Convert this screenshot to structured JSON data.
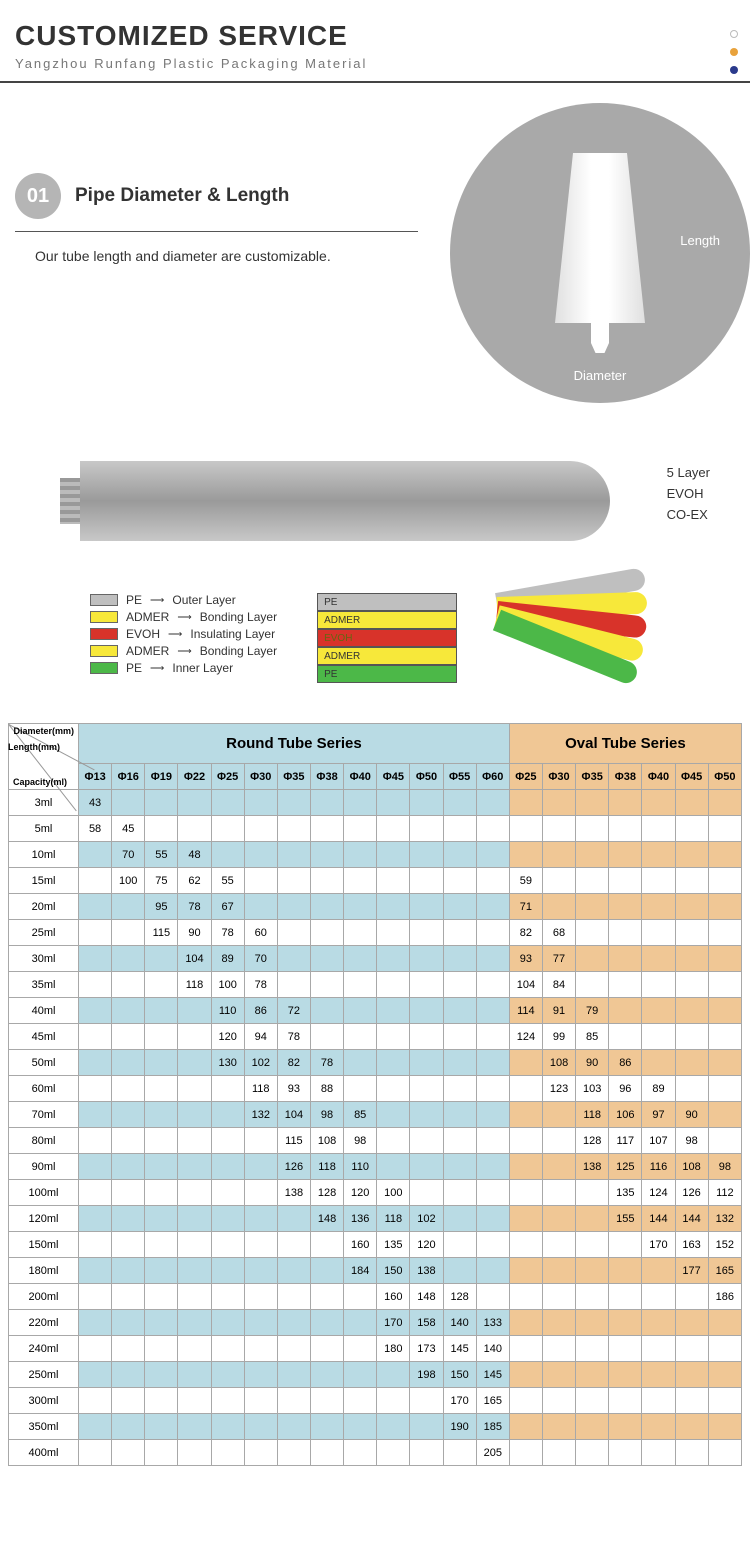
{
  "header": {
    "title": "CUSTOMIZED SERVICE",
    "subtitle": "Yangzhou Runfang Plastic Packaging Material"
  },
  "dots": {
    "colors": [
      "#ffffff",
      "#e8a23c",
      "#2a3a8c"
    ]
  },
  "section1": {
    "badge": "01",
    "title": "Pipe Diameter & Length",
    "text": "Our tube length and diameter are customizable.",
    "length_label": "Length",
    "diameter_label": "Diameter",
    "circle_bg": "#a9a9a9"
  },
  "diagram": {
    "side_labels": [
      "5 Layer",
      "EVOH",
      "CO-EX"
    ],
    "legend": [
      {
        "color": "#bfbfbf",
        "name": "PE",
        "role": "Outer Layer"
      },
      {
        "color": "#f7e83a",
        "name": "ADMER",
        "role": "Bonding Layer"
      },
      {
        "color": "#d8332a",
        "name": "EVOH",
        "role": "Insulating Layer"
      },
      {
        "color": "#f7e83a",
        "name": "ADMER",
        "role": "Bonding Layer"
      },
      {
        "color": "#4cb848",
        "name": "PE",
        "role": "Inner Layer"
      }
    ],
    "stack_labels": [
      "PE",
      "ADMER",
      "EVOH",
      "ADMER",
      "PE"
    ],
    "stack_colors": [
      "#bfbfbf",
      "#f7e83a",
      "#d8332a",
      "#f7e83a",
      "#4cb848"
    ]
  },
  "table": {
    "corner_labels": {
      "c1": "Diameter(mm)",
      "c2": "Length(mm)",
      "c3": "Capacity(ml)"
    },
    "round_title": "Round Tube Series",
    "oval_title": "Oval Tube Series",
    "round_cols": [
      "Φ13",
      "Φ16",
      "Φ19",
      "Φ22",
      "Φ25",
      "Φ30",
      "Φ35",
      "Φ38",
      "Φ40",
      "Φ45",
      "Φ50",
      "Φ55",
      "Φ60"
    ],
    "oval_cols": [
      "Φ25",
      "Φ30",
      "Φ35",
      "Φ38",
      "Φ40",
      "Φ45",
      "Φ50"
    ],
    "rows": [
      {
        "cap": "3ml",
        "r": [
          "43",
          "",
          "",
          "",
          "",
          "",
          "",
          "",
          "",
          "",
          "",
          "",
          ""
        ],
        "o": [
          "",
          "",
          "",
          "",
          "",
          "",
          ""
        ]
      },
      {
        "cap": "5ml",
        "r": [
          "58",
          "45",
          "",
          "",
          "",
          "",
          "",
          "",
          "",
          "",
          "",
          "",
          ""
        ],
        "o": [
          "",
          "",
          "",
          "",
          "",
          "",
          ""
        ]
      },
      {
        "cap": "10ml",
        "r": [
          "",
          "70",
          "55",
          "48",
          "",
          "",
          "",
          "",
          "",
          "",
          "",
          "",
          ""
        ],
        "o": [
          "",
          "",
          "",
          "",
          "",
          "",
          ""
        ]
      },
      {
        "cap": "15ml",
        "r": [
          "",
          "100",
          "75",
          "62",
          "55",
          "",
          "",
          "",
          "",
          "",
          "",
          "",
          ""
        ],
        "o": [
          "59",
          "",
          "",
          "",
          "",
          "",
          ""
        ]
      },
      {
        "cap": "20ml",
        "r": [
          "",
          "",
          "95",
          "78",
          "67",
          "",
          "",
          "",
          "",
          "",
          "",
          "",
          ""
        ],
        "o": [
          "71",
          "",
          "",
          "",
          "",
          "",
          ""
        ]
      },
      {
        "cap": "25ml",
        "r": [
          "",
          "",
          "115",
          "90",
          "78",
          "60",
          "",
          "",
          "",
          "",
          "",
          "",
          ""
        ],
        "o": [
          "82",
          "68",
          "",
          "",
          "",
          "",
          ""
        ]
      },
      {
        "cap": "30ml",
        "r": [
          "",
          "",
          "",
          "104",
          "89",
          "70",
          "",
          "",
          "",
          "",
          "",
          "",
          ""
        ],
        "o": [
          "93",
          "77",
          "",
          "",
          "",
          "",
          ""
        ]
      },
      {
        "cap": "35ml",
        "r": [
          "",
          "",
          "",
          "118",
          "100",
          "78",
          "",
          "",
          "",
          "",
          "",
          "",
          ""
        ],
        "o": [
          "104",
          "84",
          "",
          "",
          "",
          "",
          ""
        ]
      },
      {
        "cap": "40ml",
        "r": [
          "",
          "",
          "",
          "",
          "110",
          "86",
          "72",
          "",
          "",
          "",
          "",
          "",
          ""
        ],
        "o": [
          "114",
          "91",
          "79",
          "",
          "",
          "",
          ""
        ]
      },
      {
        "cap": "45ml",
        "r": [
          "",
          "",
          "",
          "",
          "120",
          "94",
          "78",
          "",
          "",
          "",
          "",
          "",
          ""
        ],
        "o": [
          "124",
          "99",
          "85",
          "",
          "",
          "",
          ""
        ]
      },
      {
        "cap": "50ml",
        "r": [
          "",
          "",
          "",
          "",
          "130",
          "102",
          "82",
          "78",
          "",
          "",
          "",
          "",
          ""
        ],
        "o": [
          "",
          "108",
          "90",
          "86",
          "",
          "",
          ""
        ]
      },
      {
        "cap": "60ml",
        "r": [
          "",
          "",
          "",
          "",
          "",
          "118",
          "93",
          "88",
          "",
          "",
          "",
          "",
          ""
        ],
        "o": [
          "",
          "123",
          "103",
          "96",
          "89",
          "",
          ""
        ]
      },
      {
        "cap": "70ml",
        "r": [
          "",
          "",
          "",
          "",
          "",
          "132",
          "104",
          "98",
          "85",
          "",
          "",
          "",
          ""
        ],
        "o": [
          "",
          "",
          "118",
          "106",
          "97",
          "90",
          ""
        ]
      },
      {
        "cap": "80ml",
        "r": [
          "",
          "",
          "",
          "",
          "",
          "",
          "115",
          "108",
          "98",
          "",
          "",
          "",
          ""
        ],
        "o": [
          "",
          "",
          "128",
          "117",
          "107",
          "98",
          ""
        ]
      },
      {
        "cap": "90ml",
        "r": [
          "",
          "",
          "",
          "",
          "",
          "",
          "126",
          "118",
          "110",
          "",
          "",
          "",
          ""
        ],
        "o": [
          "",
          "",
          "138",
          "125",
          "116",
          "108",
          "98"
        ]
      },
      {
        "cap": "100ml",
        "r": [
          "",
          "",
          "",
          "",
          "",
          "",
          "138",
          "128",
          "120",
          "100",
          "",
          "",
          ""
        ],
        "o": [
          "",
          "",
          "",
          "135",
          "124",
          "126",
          "112"
        ]
      },
      {
        "cap": "120ml",
        "r": [
          "",
          "",
          "",
          "",
          "",
          "",
          "",
          "148",
          "136",
          "118",
          "102",
          "",
          ""
        ],
        "o": [
          "",
          "",
          "",
          "155",
          "144",
          "144",
          "132"
        ]
      },
      {
        "cap": "150ml",
        "r": [
          "",
          "",
          "",
          "",
          "",
          "",
          "",
          "",
          "160",
          "135",
          "120",
          "",
          ""
        ],
        "o": [
          "",
          "",
          "",
          "",
          "170",
          "163",
          "152"
        ]
      },
      {
        "cap": "180ml",
        "r": [
          "",
          "",
          "",
          "",
          "",
          "",
          "",
          "",
          "184",
          "150",
          "138",
          "",
          ""
        ],
        "o": [
          "",
          "",
          "",
          "",
          "",
          "177",
          "165"
        ]
      },
      {
        "cap": "200ml",
        "r": [
          "",
          "",
          "",
          "",
          "",
          "",
          "",
          "",
          "",
          "160",
          "148",
          "128",
          ""
        ],
        "o": [
          "",
          "",
          "",
          "",
          "",
          "",
          "186"
        ]
      },
      {
        "cap": "220ml",
        "r": [
          "",
          "",
          "",
          "",
          "",
          "",
          "",
          "",
          "",
          "170",
          "158",
          "140",
          "133"
        ],
        "o": [
          "",
          "",
          "",
          "",
          "",
          "",
          ""
        ]
      },
      {
        "cap": "240ml",
        "r": [
          "",
          "",
          "",
          "",
          "",
          "",
          "",
          "",
          "",
          "180",
          "173",
          "145",
          "140"
        ],
        "o": [
          "",
          "",
          "",
          "",
          "",
          "",
          ""
        ]
      },
      {
        "cap": "250ml",
        "r": [
          "",
          "",
          "",
          "",
          "",
          "",
          "",
          "",
          "",
          "",
          "198",
          "150",
          "145"
        ],
        "o": [
          "",
          "",
          "",
          "",
          "",
          "",
          ""
        ]
      },
      {
        "cap": "300ml",
        "r": [
          "",
          "",
          "",
          "",
          "",
          "",
          "",
          "",
          "",
          "",
          "",
          "170",
          "165"
        ],
        "o": [
          "",
          "",
          "",
          "",
          "",
          "",
          ""
        ]
      },
      {
        "cap": "350ml",
        "r": [
          "",
          "",
          "",
          "",
          "",
          "",
          "",
          "",
          "",
          "",
          "",
          "190",
          "185"
        ],
        "o": [
          "",
          "",
          "",
          "",
          "",
          "",
          ""
        ]
      },
      {
        "cap": "400ml",
        "r": [
          "",
          "",
          "",
          "",
          "",
          "",
          "",
          "",
          "",
          "",
          "",
          "",
          "205"
        ],
        "o": [
          "",
          "",
          "",
          "",
          "",
          "",
          ""
        ]
      }
    ],
    "hdr_round_bg": "#b9dbe4",
    "hdr_oval_bg": "#f0c795"
  }
}
